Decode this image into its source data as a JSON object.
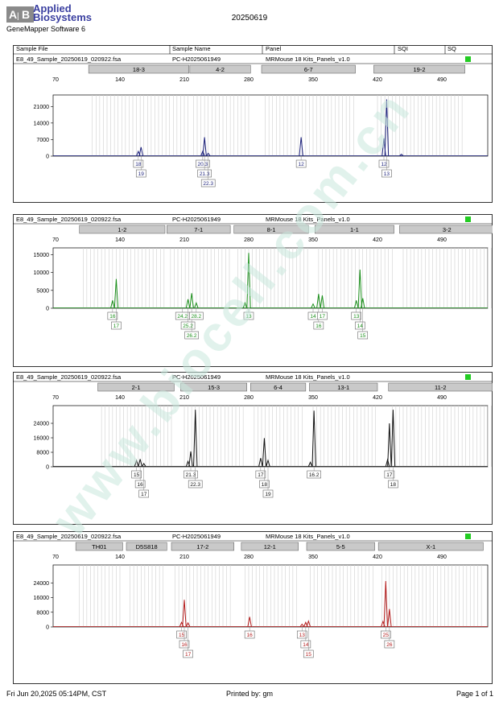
{
  "header": {
    "logo_line1": "Applied",
    "logo_line2": "Biosystems",
    "software": "GeneMapper Software 6",
    "run_title": "20250619"
  },
  "columns": {
    "sample_file": "Sample File",
    "sample_name": "Sample Name",
    "panel": "Panel",
    "sqi": "SQI",
    "sq": "SQ"
  },
  "panels": [
    {
      "sample_file": "E8_49_Sample_20250619_020922.fsa",
      "sample_name": "PC-H2025061949",
      "panel": "MRMouse 18 Kits_Panels_v1.0",
      "color": "#1a1f7a",
      "x_ticks": [
        70,
        140,
        210,
        280,
        350,
        420,
        490
      ],
      "y_ticks": [
        0,
        7000,
        14000,
        21000
      ],
      "y_max": 24500,
      "markers": [
        {
          "label": "18-3",
          "from": 106,
          "to": 215
        },
        {
          "label": "4-2",
          "from": 216,
          "to": 282
        },
        {
          "label": "6-7",
          "from": 294,
          "to": 396
        },
        {
          "label": "19-2",
          "from": 416,
          "to": 515
        }
      ],
      "peaks": [
        {
          "x": 160,
          "h": 2000
        },
        {
          "x": 163,
          "h": 3800
        },
        {
          "x": 230,
          "h": 2000
        },
        {
          "x": 232,
          "h": 8000
        },
        {
          "x": 236,
          "h": 1200
        },
        {
          "x": 337,
          "h": 8000
        },
        {
          "x": 427,
          "h": 7500
        },
        {
          "x": 430,
          "h": 24000
        },
        {
          "x": 446,
          "h": 800
        }
      ],
      "alleles": [
        {
          "x": 160,
          "row": 0,
          "label": "18"
        },
        {
          "x": 163,
          "row": 1,
          "label": "19"
        },
        {
          "x": 230,
          "row": 0,
          "label": "20.3"
        },
        {
          "x": 232,
          "row": 1,
          "label": "21.3"
        },
        {
          "x": 236,
          "row": 2,
          "label": "22.3"
        },
        {
          "x": 337,
          "row": 0,
          "label": "12"
        },
        {
          "x": 427,
          "row": 0,
          "label": "12"
        },
        {
          "x": 430,
          "row": 1,
          "label": "13"
        }
      ]
    },
    {
      "sample_file": "E8_49_Sample_20250619_020922.fsa",
      "sample_name": "PC-H2025061949",
      "panel": "MRMouse 18 Kits_Panels_v1.0",
      "color": "#1b8f1b",
      "x_ticks": [
        70,
        140,
        210,
        280,
        350,
        420,
        490
      ],
      "y_ticks": [
        0,
        5000,
        10000,
        15000
      ],
      "y_max": 16000,
      "markers": [
        {
          "label": "1-2",
          "from": 96,
          "to": 189
        },
        {
          "label": "7-1",
          "from": 191,
          "to": 260
        },
        {
          "label": "8-1",
          "from": 264,
          "to": 345
        },
        {
          "label": "1-1",
          "from": 352,
          "to": 438
        },
        {
          "label": "3-2",
          "from": 444,
          "to": 547
        }
      ],
      "peaks": [
        {
          "x": 132,
          "h": 2200
        },
        {
          "x": 136,
          "h": 8200
        },
        {
          "x": 214,
          "h": 2500
        },
        {
          "x": 218,
          "h": 4200
        },
        {
          "x": 223,
          "h": 1500
        },
        {
          "x": 276,
          "h": 1500
        },
        {
          "x": 280,
          "h": 15500
        },
        {
          "x": 350,
          "h": 1200
        },
        {
          "x": 356,
          "h": 4000
        },
        {
          "x": 360,
          "h": 3600
        },
        {
          "x": 397,
          "h": 2200
        },
        {
          "x": 401,
          "h": 10800
        },
        {
          "x": 404,
          "h": 2800
        }
      ],
      "alleles": [
        {
          "x": 132,
          "row": 0,
          "label": "16"
        },
        {
          "x": 136,
          "row": 1,
          "label": "17"
        },
        {
          "x": 208,
          "row": 0,
          "label": "24.2"
        },
        {
          "x": 214,
          "row": 1,
          "label": "25.2"
        },
        {
          "x": 218,
          "row": 2,
          "label": "26.2"
        },
        {
          "x": 223,
          "row": 0,
          "label": "28.2"
        },
        {
          "x": 280,
          "row": 0,
          "label": "13"
        },
        {
          "x": 350,
          "row": 0,
          "label": "14"
        },
        {
          "x": 356,
          "row": 1,
          "label": "16"
        },
        {
          "x": 360,
          "row": 0,
          "label": "17"
        },
        {
          "x": 397,
          "row": 0,
          "label": "13"
        },
        {
          "x": 401,
          "row": 1,
          "label": "14"
        },
        {
          "x": 404,
          "row": 2,
          "label": "15"
        }
      ]
    },
    {
      "sample_file": "E8_49_Sample_20250619_020922.fsa",
      "sample_name": "PC-H2025061949",
      "panel": "MRMouse 18 Kits_Panels_v1.0",
      "color": "#111111",
      "x_ticks": [
        70,
        140,
        210,
        280,
        350,
        420,
        490
      ],
      "y_ticks": [
        0,
        8000,
        16000,
        24000
      ],
      "y_max": 32000,
      "markers": [
        {
          "label": "2-1",
          "from": 116,
          "to": 199
        },
        {
          "label": "15-3",
          "from": 206,
          "to": 278
        },
        {
          "label": "6-4",
          "from": 282,
          "to": 342
        },
        {
          "label": "13-1",
          "from": 346,
          "to": 420
        },
        {
          "label": "11-2",
          "from": 432,
          "to": 545
        }
      ],
      "peaks": [
        {
          "x": 158,
          "h": 3500
        },
        {
          "x": 162,
          "h": 4200
        },
        {
          "x": 166,
          "h": 1800
        },
        {
          "x": 214,
          "h": 3000
        },
        {
          "x": 217,
          "h": 8500
        },
        {
          "x": 222,
          "h": 31500
        },
        {
          "x": 293,
          "h": 4800
        },
        {
          "x": 297,
          "h": 15800
        },
        {
          "x": 301,
          "h": 3500
        },
        {
          "x": 347,
          "h": 2500
        },
        {
          "x": 351,
          "h": 31000
        },
        {
          "x": 431,
          "h": 4000
        },
        {
          "x": 433,
          "h": 24000
        },
        {
          "x": 437,
          "h": 31500
        }
      ],
      "alleles": [
        {
          "x": 158,
          "row": 0,
          "label": "15"
        },
        {
          "x": 162,
          "row": 1,
          "label": "16"
        },
        {
          "x": 166,
          "row": 2,
          "label": "17"
        },
        {
          "x": 217,
          "row": 0,
          "label": "21.3"
        },
        {
          "x": 222,
          "row": 1,
          "label": "22.3"
        },
        {
          "x": 293,
          "row": 0,
          "label": "17"
        },
        {
          "x": 297,
          "row": 1,
          "label": "18"
        },
        {
          "x": 301,
          "row": 2,
          "label": "19"
        },
        {
          "x": 351,
          "row": 0,
          "label": "16.2"
        },
        {
          "x": 433,
          "row": 0,
          "label": "17"
        },
        {
          "x": 437,
          "row": 1,
          "label": "18"
        }
      ]
    },
    {
      "sample_file": "E8_49_Sample_20250619_020922.fsa",
      "sample_name": "PC-H2025061949",
      "panel": "MRMouse 18 Kits_Panels_v1.0",
      "color": "#b31b1b",
      "x_ticks": [
        70,
        140,
        210,
        280,
        350,
        420,
        490
      ],
      "y_ticks": [
        0,
        8000,
        16000,
        24000
      ],
      "y_max": 32000,
      "markers": [
        {
          "label": "TH01",
          "from": 92,
          "to": 143
        },
        {
          "label": "D5S818",
          "from": 147,
          "to": 191
        },
        {
          "label": "17-2",
          "from": 196,
          "to": 264
        },
        {
          "label": "12-1",
          "from": 272,
          "to": 334
        },
        {
          "label": "5-5",
          "from": 343,
          "to": 417
        },
        {
          "label": "X-1",
          "from": 421,
          "to": 535
        }
      ],
      "peaks": [
        {
          "x": 207,
          "h": 2500
        },
        {
          "x": 210,
          "h": 14800
        },
        {
          "x": 214,
          "h": 2200
        },
        {
          "x": 281,
          "h": 5500
        },
        {
          "x": 338,
          "h": 1500
        },
        {
          "x": 342,
          "h": 2500
        },
        {
          "x": 345,
          "h": 3200
        },
        {
          "x": 426,
          "h": 3000
        },
        {
          "x": 429,
          "h": 25000
        },
        {
          "x": 433,
          "h": 9800
        }
      ],
      "alleles": [
        {
          "x": 207,
          "row": 0,
          "label": "15"
        },
        {
          "x": 210,
          "row": 1,
          "label": "16"
        },
        {
          "x": 214,
          "row": 2,
          "label": "17"
        },
        {
          "x": 281,
          "row": 0,
          "label": "16"
        },
        {
          "x": 338,
          "row": 0,
          "label": "13"
        },
        {
          "x": 342,
          "row": 1,
          "label": "14"
        },
        {
          "x": 345,
          "row": 2,
          "label": "15"
        },
        {
          "x": 429,
          "row": 0,
          "label": "25"
        },
        {
          "x": 433,
          "row": 1,
          "label": "26"
        }
      ]
    }
  ],
  "footer": {
    "date": "Fri Jun 20,2025 05:14PM, CST",
    "printed": "Printed by: gm",
    "page": "Page 1 of 1"
  }
}
